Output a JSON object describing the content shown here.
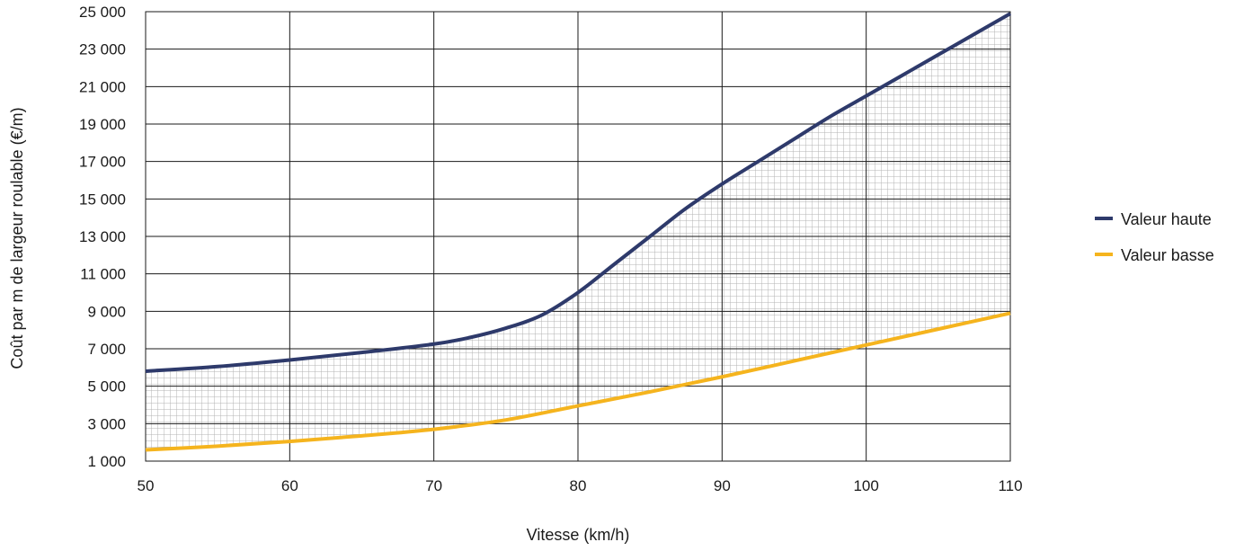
{
  "chart_data": {
    "type": "line",
    "title": "",
    "xlabel": "Vitesse (km/h)",
    "ylabel": "Coût par m de largeur roulable (€/m)",
    "xlim": [
      50,
      110
    ],
    "ylim": [
      1000,
      25000
    ],
    "x_ticks": [
      50,
      60,
      70,
      80,
      90,
      100,
      110
    ],
    "x_tick_labels": [
      "50",
      "60",
      "70",
      "80",
      "90",
      "100",
      "110"
    ],
    "y_ticks": [
      1000,
      3000,
      5000,
      7000,
      9000,
      11000,
      13000,
      15000,
      17000,
      19000,
      21000,
      23000,
      25000
    ],
    "y_tick_labels": [
      "1 000",
      "3 000",
      "5 000",
      "7 000",
      "9 000",
      "11 000",
      "13 000",
      "15 000",
      "17 000",
      "19 000",
      "21 000",
      "23 000",
      "25 000"
    ],
    "grid": true,
    "fill_between_series": true,
    "fill_pattern": "hatched grid",
    "legend_position": "right",
    "series": [
      {
        "name": "Valeur haute",
        "color": "#2e3a6b",
        "x": [
          50,
          55,
          60,
          65,
          70,
          72.5,
          75,
          77.5,
          80,
          82.5,
          85,
          87.5,
          90,
          92.5,
          95,
          97.5,
          100,
          102.5,
          105,
          107.5,
          110
        ],
        "y": [
          5800,
          6050,
          6400,
          6800,
          7250,
          7600,
          8100,
          8800,
          10000,
          11500,
          13000,
          14500,
          15800,
          17000,
          18200,
          19400,
          20500,
          21600,
          22700,
          23800,
          24900
        ]
      },
      {
        "name": "Valeur basse",
        "color": "#f5b41e",
        "x": [
          50,
          55,
          60,
          65,
          70,
          75,
          80,
          85,
          90,
          95,
          100,
          105,
          110
        ],
        "y": [
          1600,
          1800,
          2050,
          2350,
          2700,
          3200,
          3950,
          4700,
          5500,
          6350,
          7200,
          8050,
          8900
        ]
      }
    ]
  }
}
